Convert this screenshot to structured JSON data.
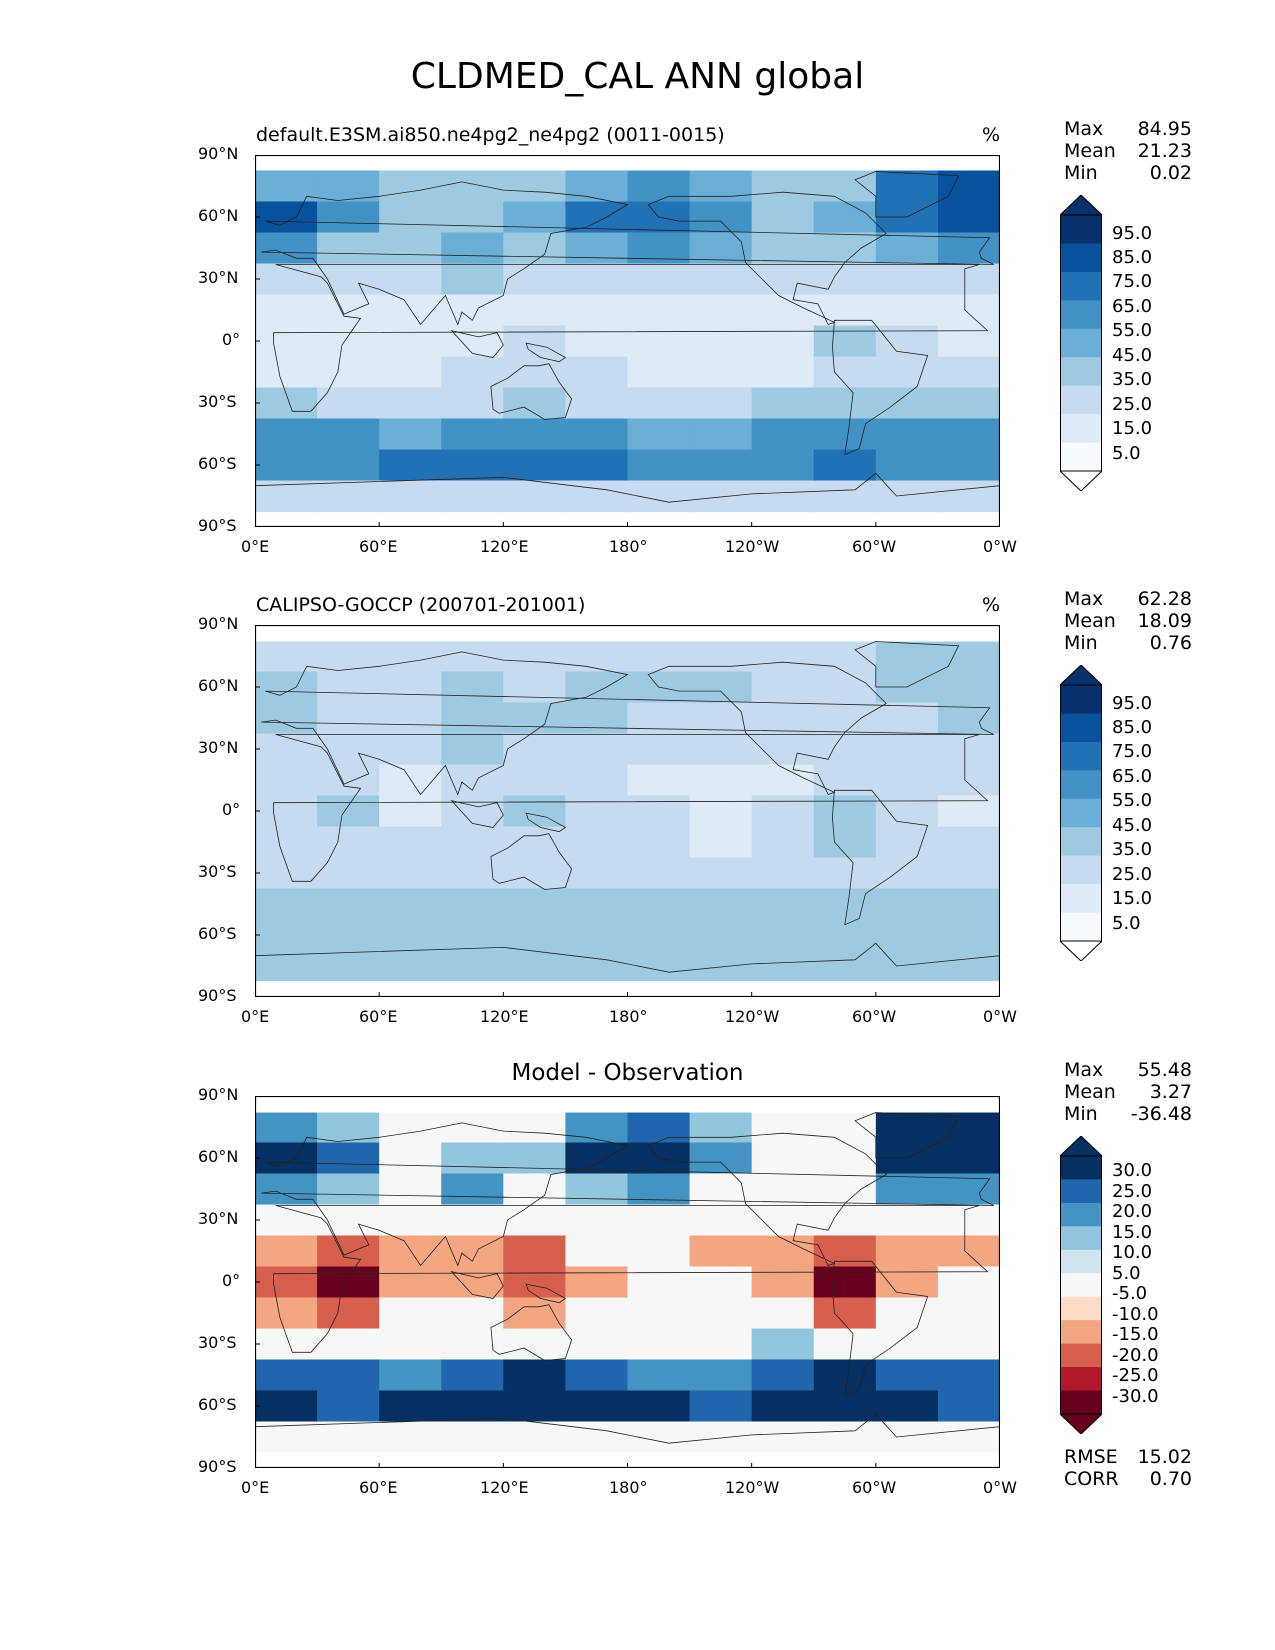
{
  "figure_title": "CLDMED_CAL ANN global",
  "panels": [
    {
      "title": "default.E3SM.ai850.ne4pg2_ne4pg2 (0011-0015)",
      "units": "%",
      "stats": {
        "max_label": "Max",
        "max": "84.95",
        "mean_label": "Mean",
        "mean": "21.23",
        "min_label": "Min",
        "min": "0.02"
      },
      "colorbar": {
        "labels": [
          "95.0",
          "85.0",
          "75.0",
          "65.0",
          "55.0",
          "45.0",
          "35.0",
          "25.0",
          "15.0",
          "5.0"
        ]
      }
    },
    {
      "title": "CALIPSO-GOCCP (200701-201001)",
      "units": "%",
      "stats": {
        "max_label": "Max",
        "max": "62.28",
        "mean_label": "Mean",
        "mean": "18.09",
        "min_label": "Min",
        "min": "0.76"
      },
      "colorbar": {
        "labels": [
          "95.0",
          "85.0",
          "75.0",
          "65.0",
          "55.0",
          "45.0",
          "35.0",
          "25.0",
          "15.0",
          "5.0"
        ]
      }
    },
    {
      "title": "Model - Observation",
      "units": "",
      "stats": {
        "max_label": "Max",
        "max": "55.48",
        "mean_label": "Mean",
        "mean": "3.27",
        "min_label": "Min",
        "min": "-36.48"
      },
      "colorbar": {
        "labels": [
          "30.0",
          "25.0",
          "20.0",
          "15.0",
          "10.0",
          "5.0",
          "-5.0",
          "-10.0",
          "-15.0",
          "-20.0",
          "-25.0",
          "-30.0"
        ]
      },
      "metrics": {
        "rmse_label": "RMSE",
        "rmse": "15.02",
        "corr_label": "CORR",
        "corr": "0.70"
      }
    }
  ],
  "axes": {
    "lat_ticks": [
      "90°N",
      "60°N",
      "30°N",
      "0°",
      "30°S",
      "60°S",
      "90°S"
    ],
    "lon_ticks": [
      "0°E",
      "60°E",
      "120°E",
      "180°",
      "120°W",
      "60°W",
      "0°W"
    ]
  },
  "colors": {
    "seq": [
      "#f7fbff",
      "#deebf7",
      "#c6dbef",
      "#9ecae1",
      "#6baed6",
      "#4292c6",
      "#2171b5",
      "#08519c",
      "#08306b"
    ],
    "div_neg": [
      "#67001f",
      "#b2182b",
      "#d6604d",
      "#f4a582",
      "#fddbc7"
    ],
    "div_pos": [
      "#d1e5f0",
      "#92c5de",
      "#4393c3",
      "#2166ac",
      "#053061"
    ],
    "neutral": "#f7f7f7"
  },
  "chart_data": [
    {
      "type": "heatmap",
      "title": "default.E3SM.ai850.ne4pg2_ne4pg2 (0011-0015)",
      "variable": "CLDMED_CAL",
      "units": "%",
      "x": [
        0,
        30,
        60,
        90,
        120,
        150,
        180,
        210,
        240,
        270,
        300,
        330
      ],
      "y": [
        75,
        60,
        45,
        30,
        15,
        0,
        -15,
        -30,
        -45,
        -60,
        -75
      ],
      "values": [
        [
          40,
          35,
          25,
          25,
          25,
          35,
          45,
          35,
          25,
          30,
          60,
          65
        ],
        [
          65,
          45,
          30,
          30,
          35,
          55,
          60,
          45,
          30,
          35,
          60,
          70
        ],
        [
          45,
          30,
          30,
          35,
          30,
          40,
          45,
          35,
          25,
          30,
          40,
          45
        ],
        [
          20,
          15,
          15,
          25,
          15,
          15,
          15,
          15,
          15,
          15,
          20,
          20
        ],
        [
          10,
          10,
          5,
          10,
          10,
          10,
          10,
          10,
          5,
          10,
          10,
          10
        ],
        [
          5,
          5,
          5,
          10,
          20,
          10,
          5,
          5,
          5,
          25,
          15,
          5
        ],
        [
          10,
          10,
          10,
          15,
          20,
          15,
          10,
          10,
          10,
          20,
          15,
          15
        ],
        [
          25,
          20,
          20,
          20,
          25,
          20,
          20,
          20,
          25,
          25,
          25,
          25
        ],
        [
          45,
          45,
          40,
          45,
          45,
          45,
          40,
          40,
          45,
          50,
          45,
          45
        ],
        [
          50,
          50,
          55,
          60,
          55,
          55,
          50,
          45,
          50,
          60,
          50,
          45
        ],
        [
          20,
          20,
          20,
          20,
          20,
          20,
          20,
          20,
          20,
          20,
          20,
          20
        ]
      ],
      "ylim": [
        -90,
        90
      ],
      "xlim": [
        0,
        360
      ],
      "levels": [
        5,
        15,
        25,
        35,
        45,
        55,
        65,
        75,
        85,
        95
      ]
    },
    {
      "type": "heatmap",
      "title": "CALIPSO-GOCCP (200701-201001)",
      "variable": "CLDMED_CAL",
      "units": "%",
      "x": [
        0,
        30,
        60,
        90,
        120,
        150,
        180,
        210,
        240,
        270,
        300,
        330
      ],
      "y": [
        75,
        60,
        45,
        30,
        15,
        0,
        -15,
        -30,
        -45,
        -60,
        -75
      ],
      "values": [
        [
          20,
          20,
          15,
          15,
          20,
          20,
          20,
          20,
          20,
          20,
          30,
          25
        ],
        [
          25,
          20,
          20,
          25,
          20,
          25,
          25,
          25,
          20,
          20,
          25,
          25
        ],
        [
          25,
          20,
          20,
          30,
          25,
          25,
          20,
          20,
          20,
          20,
          20,
          25
        ],
        [
          20,
          20,
          15,
          30,
          20,
          15,
          15,
          15,
          15,
          15,
          15,
          15
        ],
        [
          15,
          15,
          10,
          20,
          20,
          15,
          10,
          10,
          10,
          20,
          15,
          15
        ],
        [
          15,
          25,
          10,
          15,
          25,
          15,
          15,
          10,
          15,
          30,
          20,
          10
        ],
        [
          15,
          20,
          15,
          15,
          20,
          15,
          15,
          10,
          15,
          25,
          20,
          15
        ],
        [
          20,
          20,
          20,
          20,
          20,
          20,
          20,
          20,
          20,
          20,
          20,
          20
        ],
        [
          25,
          25,
          30,
          30,
          30,
          30,
          25,
          25,
          25,
          30,
          25,
          25
        ],
        [
          30,
          30,
          30,
          30,
          30,
          30,
          30,
          30,
          30,
          30,
          30,
          30
        ],
        [
          25,
          25,
          25,
          25,
          25,
          25,
          25,
          25,
          25,
          25,
          25,
          25
        ]
      ],
      "ylim": [
        -90,
        90
      ],
      "xlim": [
        0,
        360
      ],
      "levels": [
        5,
        15,
        25,
        35,
        45,
        55,
        65,
        75,
        85,
        95
      ]
    },
    {
      "type": "heatmap",
      "title": "Model - Observation",
      "variable": "CLDMED_CAL difference",
      "units": "%",
      "x": [
        0,
        30,
        60,
        90,
        120,
        150,
        180,
        210,
        240,
        270,
        300,
        330
      ],
      "y": [
        75,
        60,
        45,
        30,
        15,
        0,
        -15,
        -30,
        -45,
        -60,
        -75
      ],
      "values": [
        [
          15,
          10,
          0,
          -5,
          0,
          15,
          20,
          10,
          0,
          5,
          30,
          35
        ],
        [
          35,
          20,
          5,
          10,
          10,
          30,
          30,
          15,
          5,
          0,
          30,
          40
        ],
        [
          15,
          10,
          5,
          15,
          5,
          10,
          15,
          5,
          0,
          5,
          15,
          15
        ],
        [
          0,
          -5,
          0,
          5,
          -5,
          0,
          0,
          0,
          0,
          0,
          5,
          5
        ],
        [
          -10,
          -15,
          -10,
          -10,
          -15,
          -5,
          -5,
          -10,
          -10,
          -15,
          -10,
          -10
        ],
        [
          -15,
          -25,
          -10,
          -10,
          -15,
          -10,
          -5,
          -5,
          -10,
          -25,
          -10,
          -5
        ],
        [
          -10,
          -15,
          -5,
          -5,
          -10,
          -5,
          0,
          0,
          -5,
          -15,
          -5,
          0
        ],
        [
          5,
          0,
          5,
          5,
          5,
          5,
          5,
          5,
          10,
          5,
          5,
          5
        ],
        [
          20,
          20,
          15,
          20,
          25,
          20,
          15,
          15,
          20,
          25,
          20,
          20
        ],
        [
          25,
          20,
          30,
          35,
          30,
          30,
          25,
          20,
          25,
          35,
          25,
          20
        ],
        [
          0,
          0,
          0,
          0,
          0,
          0,
          0,
          0,
          0,
          0,
          0,
          0
        ]
      ],
      "ylim": [
        -90,
        90
      ],
      "xlim": [
        0,
        360
      ],
      "levels": [
        -30,
        -25,
        -20,
        -15,
        -10,
        -5,
        5,
        10,
        15,
        20,
        25,
        30
      ]
    }
  ]
}
